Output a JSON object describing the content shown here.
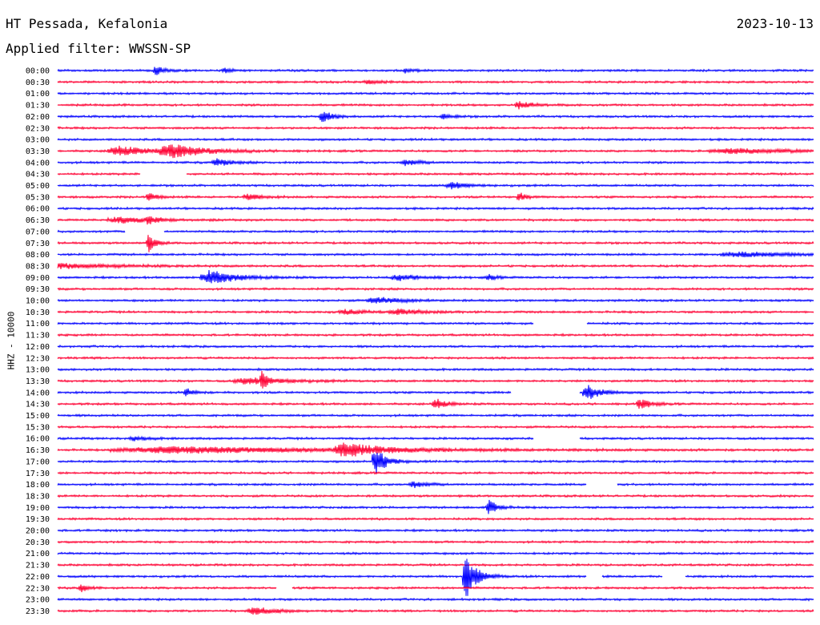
{
  "header": {
    "station": "HT Pessada, Kefalonia",
    "date": "2023-10-13",
    "filter": "Applied filter: WWSSN-SP"
  },
  "chart_data": {
    "type": "line",
    "title": "HT Pessada, Kefalonia",
    "subtitle": "Applied filter: WWSSN-SP",
    "ylabel": "HHZ - 10000",
    "xlabel": "",
    "grid": false,
    "colors": [
      "#0000ff",
      "#ff0033"
    ],
    "rows": [
      "00:00",
      "00:30",
      "01:00",
      "01:30",
      "02:00",
      "02:30",
      "03:00",
      "03:30",
      "04:00",
      "04:30",
      "05:00",
      "05:30",
      "06:00",
      "06:30",
      "07:00",
      "07:30",
      "08:00",
      "08:30",
      "09:00",
      "09:30",
      "10:00",
      "10:30",
      "11:00",
      "11:30",
      "12:00",
      "12:30",
      "13:00",
      "13:30",
      "14:00",
      "14:30",
      "15:00",
      "15:30",
      "16:00",
      "16:30",
      "17:00",
      "17:30",
      "18:00",
      "18:30",
      "19:00",
      "19:30",
      "20:00",
      "20:30",
      "21:00",
      "21:30",
      "22:00",
      "22:30",
      "23:00",
      "23:30"
    ],
    "events": [
      {
        "row": 0,
        "t": 0.13,
        "amp": 6,
        "dur": 0.012
      },
      {
        "row": 0,
        "t": 0.22,
        "amp": 3,
        "dur": 0.01
      },
      {
        "row": 0,
        "t": 0.46,
        "amp": 3,
        "dur": 0.01
      },
      {
        "row": 1,
        "t": 0.41,
        "amp": 3,
        "dur": 0.015
      },
      {
        "row": 3,
        "t": 0.61,
        "amp": 5,
        "dur": 0.02
      },
      {
        "row": 4,
        "t": 0.35,
        "amp": 7,
        "dur": 0.015
      },
      {
        "row": 4,
        "t": 0.51,
        "amp": 3,
        "dur": 0.015
      },
      {
        "row": 7,
        "t": 0.08,
        "amp": 6,
        "dur": 0.05
      },
      {
        "row": 7,
        "t": 0.15,
        "amp": 8,
        "dur": 0.05
      },
      {
        "row": 7,
        "t": 0.89,
        "amp": 3,
        "dur": 0.1
      },
      {
        "row": 8,
        "t": 0.21,
        "amp": 5,
        "dur": 0.02
      },
      {
        "row": 8,
        "t": 0.46,
        "amp": 4,
        "dur": 0.02
      },
      {
        "row": 10,
        "t": 0.52,
        "amp": 5,
        "dur": 0.02
      },
      {
        "row": 11,
        "t": 0.12,
        "amp": 7,
        "dur": 0.01
      },
      {
        "row": 11,
        "t": 0.25,
        "amp": 4,
        "dur": 0.02
      },
      {
        "row": 11,
        "t": 0.61,
        "amp": 6,
        "dur": 0.01
      },
      {
        "row": 13,
        "t": 0.08,
        "amp": 4,
        "dur": 0.05
      },
      {
        "row": 13,
        "t": 0.12,
        "amp": 6,
        "dur": 0.01
      },
      {
        "row": 15,
        "t": 0.12,
        "amp": 11,
        "dur": 0.01
      },
      {
        "row": 16,
        "t": 0.9,
        "amp": 3,
        "dur": 0.08
      },
      {
        "row": 17,
        "t": 0.0,
        "amp": 3,
        "dur": 0.09
      },
      {
        "row": 18,
        "t": 0.2,
        "amp": 9,
        "dur": 0.04
      },
      {
        "row": 18,
        "t": 0.45,
        "amp": 4,
        "dur": 0.03
      },
      {
        "row": 18,
        "t": 0.57,
        "amp": 4,
        "dur": 0.01
      },
      {
        "row": 20,
        "t": 0.42,
        "amp": 4,
        "dur": 0.04
      },
      {
        "row": 21,
        "t": 0.38,
        "amp": 3,
        "dur": 0.03
      },
      {
        "row": 21,
        "t": 0.45,
        "amp": 3,
        "dur": 0.04
      },
      {
        "row": 27,
        "t": 0.25,
        "amp": 4,
        "dur": 0.06
      },
      {
        "row": 27,
        "t": 0.27,
        "amp": 10,
        "dur": 0.008
      },
      {
        "row": 28,
        "t": 0.17,
        "amp": 6,
        "dur": 0.01
      },
      {
        "row": 28,
        "t": 0.7,
        "amp": 10,
        "dur": 0.02
      },
      {
        "row": 29,
        "t": 0.5,
        "amp": 7,
        "dur": 0.015
      },
      {
        "row": 29,
        "t": 0.77,
        "amp": 7,
        "dur": 0.015
      },
      {
        "row": 32,
        "t": 0.1,
        "amp": 3,
        "dur": 0.02
      },
      {
        "row": 33,
        "t": 0.15,
        "amp": 4,
        "dur": 0.27
      },
      {
        "row": 33,
        "t": 0.38,
        "amp": 8,
        "dur": 0.05
      },
      {
        "row": 34,
        "t": 0.42,
        "amp": 20,
        "dur": 0.015
      },
      {
        "row": 36,
        "t": 0.47,
        "amp": 4,
        "dur": 0.02
      },
      {
        "row": 38,
        "t": 0.57,
        "amp": 10,
        "dur": 0.012
      },
      {
        "row": 44,
        "t": 0.54,
        "amp": 30,
        "dur": 0.015
      },
      {
        "row": 45,
        "t": 0.03,
        "amp": 6,
        "dur": 0.01
      },
      {
        "row": 47,
        "t": 0.26,
        "amp": 5,
        "dur": 0.03
      }
    ],
    "gaps": [
      {
        "row": 9,
        "start": 0.11,
        "end": 0.17
      },
      {
        "row": 14,
        "start": 0.09,
        "end": 0.14
      },
      {
        "row": 22,
        "start": 0.63,
        "end": 0.7
      },
      {
        "row": 28,
        "start": 0.6,
        "end": 0.69
      },
      {
        "row": 32,
        "start": 0.63,
        "end": 0.69
      },
      {
        "row": 36,
        "start": 0.7,
        "end": 0.74
      },
      {
        "row": 44,
        "start": 0.7,
        "end": 0.72
      },
      {
        "row": 44,
        "start": 0.8,
        "end": 0.83
      },
      {
        "row": 45,
        "start": 0.29,
        "end": 0.31
      }
    ]
  }
}
